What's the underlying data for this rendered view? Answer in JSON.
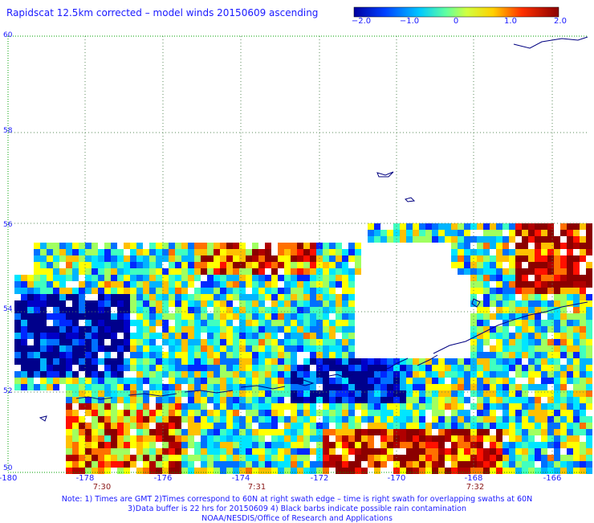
{
  "title": "Rapidscat 12.5km corrected – model winds 20150609 ascending",
  "colorbar": {
    "ticks": [
      "−2.0",
      "−1.0",
      "0",
      "1.0",
      "2.0"
    ],
    "colors": [
      "#0000a0",
      "#0050ff",
      "#00d0ff",
      "#80ff80",
      "#ffff00",
      "#ff8000",
      "#ff0000",
      "#8b0000"
    ]
  },
  "lat_labels": [
    "60",
    "58",
    "56",
    "54",
    "52",
    "50"
  ],
  "lon_labels": [
    "-180",
    "-178",
    "-176",
    "-174",
    "-172",
    "-170",
    "-168",
    "-166"
  ],
  "time_labels": [
    "7:30",
    "7:31",
    "7:32"
  ],
  "notes": [
    "Note: 1) Times are GMT 2)Times correspond to 60N at right swath edge – time is right swath for overlapping swaths at 60N",
    "3)Data buffer is 22 hrs for 20150609 4) Black barbs indicate possible rain contamination",
    "NOAA/NESDIS/Office of Research and Applications"
  ],
  "colors": {
    "text": "#1a1aff",
    "coastline": "#000080",
    "grid": "#00a000",
    "time": "#8b1a1a"
  }
}
